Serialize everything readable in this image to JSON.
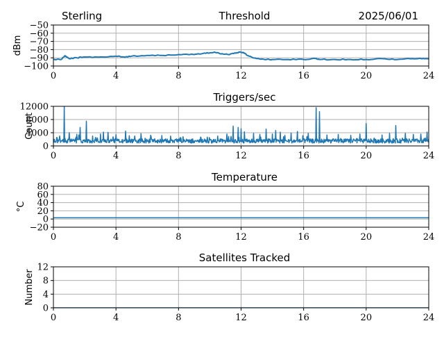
{
  "header": {
    "left": "Sterling",
    "right": "2025/06/01"
  },
  "colors": {
    "line": "#1f77b4",
    "grid": "#b0b0b0",
    "axis": "#000000"
  },
  "chart_data": [
    {
      "type": "line",
      "title": "Threshold",
      "xlabel": "",
      "ylabel": "dBm",
      "xlim": [
        0,
        24
      ],
      "ylim": [
        -100,
        -50
      ],
      "xticks": [
        0,
        4,
        8,
        12,
        16,
        20,
        24
      ],
      "yticks": [
        -100,
        -90,
        -80,
        -70,
        -60,
        -50
      ],
      "ytick_labels": [
        "−100",
        "−90",
        "−80",
        "−70",
        "−60",
        "−50"
      ],
      "grid": true,
      "series": [
        {
          "x": [
            0,
            0.5,
            0.7,
            0.8,
            1.0,
            1.5,
            2.0,
            3.0,
            4.0,
            4.5,
            5.0,
            6.0,
            7.0,
            8.0,
            9.0,
            9.5,
            10.0,
            10.3,
            10.8,
            11.2,
            11.6,
            12.0,
            12.2,
            12.5,
            13.0,
            13.5,
            14.0,
            15.0,
            16.0,
            16.8,
            17.0,
            18.0,
            19.0,
            20.0,
            21.0,
            22.0,
            23.0,
            23.5,
            24.0
          ],
          "y": [
            -92,
            -92,
            -88,
            -88,
            -91,
            -90,
            -89,
            -89,
            -88,
            -89,
            -88,
            -87,
            -87,
            -86,
            -86,
            -85,
            -84,
            -83,
            -85,
            -86,
            -84,
            -83,
            -84,
            -88,
            -91,
            -92,
            -92,
            -92,
            -92,
            -91,
            -92,
            -92,
            -92,
            -92,
            -91,
            -92,
            -91,
            -91,
            -91
          ]
        }
      ]
    },
    {
      "type": "line",
      "title": "Triggers/sec",
      "xlabel": "",
      "ylabel": "Count",
      "xlim": [
        0,
        24
      ],
      "ylim": [
        0,
        12000
      ],
      "xticks": [
        0,
        4,
        8,
        12,
        16,
        20,
        24
      ],
      "yticks": [
        0,
        4000,
        8000,
        12000
      ],
      "ytick_labels": [
        "0",
        "4000",
        "8000",
        "12000"
      ],
      "grid": true,
      "series": [
        {
          "baseline": 1500,
          "noise": 800,
          "spikes": [
            [
              0.2,
              2600
            ],
            [
              0.4,
              3000
            ],
            [
              0.7,
              12000
            ],
            [
              1.0,
              4000
            ],
            [
              1.5,
              3500
            ],
            [
              1.7,
              5600
            ],
            [
              2.1,
              7500
            ],
            [
              2.5,
              3000
            ],
            [
              3.0,
              3600
            ],
            [
              3.2,
              4200
            ],
            [
              3.5,
              4100
            ],
            [
              4.0,
              3400
            ],
            [
              4.6,
              4500
            ],
            [
              5.2,
              3000
            ],
            [
              5.6,
              3700
            ],
            [
              6.2,
              3200
            ],
            [
              7.5,
              3000
            ],
            [
              8.3,
              2800
            ],
            [
              9.4,
              2700
            ],
            [
              10.5,
              3000
            ],
            [
              11.1,
              3600
            ],
            [
              11.5,
              6000
            ],
            [
              11.8,
              5600
            ],
            [
              12.0,
              5200
            ],
            [
              12.2,
              4300
            ],
            [
              12.8,
              3800
            ],
            [
              13.2,
              3500
            ],
            [
              13.6,
              5100
            ],
            [
              14.0,
              3600
            ],
            [
              14.2,
              4700
            ],
            [
              14.5,
              4200
            ],
            [
              14.8,
              3200
            ],
            [
              15.2,
              3900
            ],
            [
              15.6,
              4400
            ],
            [
              16.3,
              3800
            ],
            [
              16.8,
              11600
            ],
            [
              17.0,
              10400
            ],
            [
              17.5,
              3300
            ],
            [
              18.2,
              3500
            ],
            [
              19.0,
              3200
            ],
            [
              19.6,
              3600
            ],
            [
              20.0,
              6800
            ],
            [
              21.0,
              3300
            ],
            [
              21.5,
              3800
            ],
            [
              21.9,
              6200
            ],
            [
              22.5,
              3800
            ],
            [
              23.0,
              3500
            ],
            [
              23.5,
              3600
            ],
            [
              23.9,
              4200
            ]
          ]
        }
      ]
    },
    {
      "type": "line",
      "title": "Temperature",
      "xlabel": "",
      "ylabel": "°C",
      "xlim": [
        0,
        24
      ],
      "ylim": [
        -20,
        80
      ],
      "xticks": [
        0,
        4,
        8,
        12,
        16,
        20,
        24
      ],
      "yticks": [
        -20,
        0,
        20,
        40,
        60,
        80
      ],
      "ytick_labels": [
        "−20",
        "0",
        "20",
        "40",
        "60",
        "80"
      ],
      "grid": true,
      "series": [
        {
          "x": [
            0,
            24
          ],
          "y": [
            3,
            3
          ]
        }
      ]
    },
    {
      "type": "line",
      "title": "Satellites Tracked",
      "xlabel": "",
      "ylabel": "Number",
      "xlim": [
        0,
        24
      ],
      "ylim": [
        0,
        12
      ],
      "xticks": [
        0,
        4,
        8,
        12,
        16,
        20,
        24
      ],
      "yticks": [
        0,
        4,
        8,
        12
      ],
      "ytick_labels": [
        "0",
        "4",
        "8",
        "12"
      ],
      "grid": true,
      "series": [
        {
          "x": [
            0,
            24
          ],
          "y": [
            0,
            0
          ]
        }
      ]
    }
  ]
}
